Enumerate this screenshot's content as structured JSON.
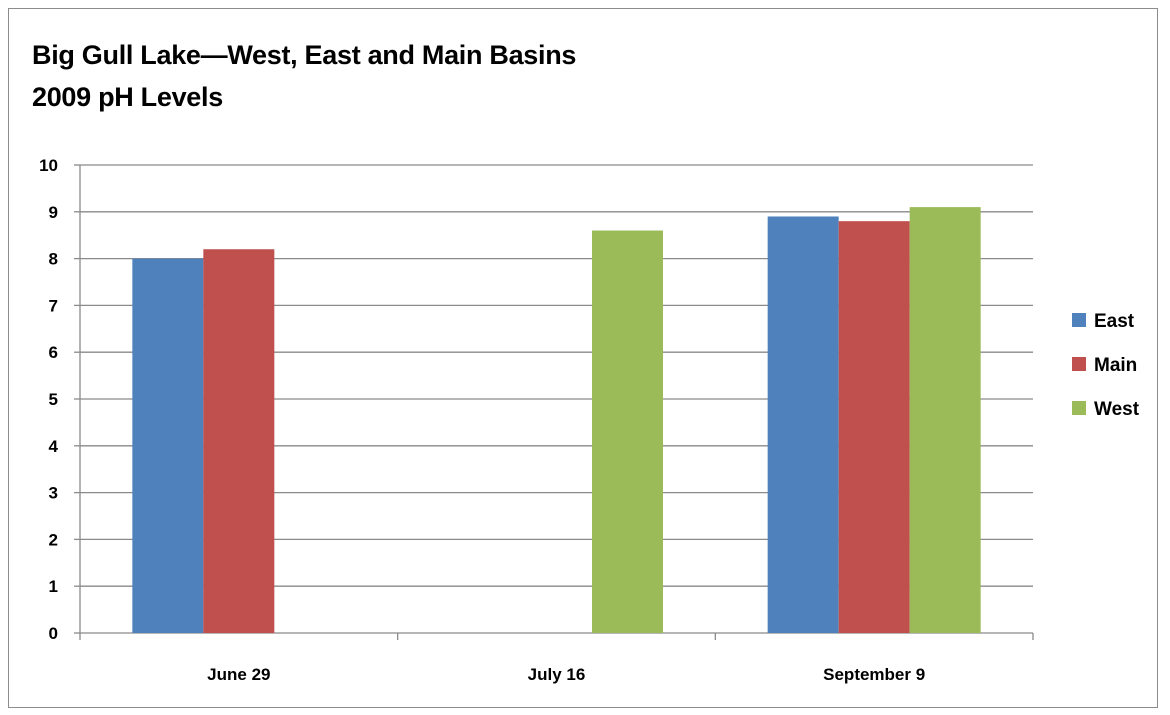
{
  "chart_data": {
    "type": "bar",
    "title": "Big Gull Lake—West, East and Main Basins",
    "subtitle": "2009 pH Levels",
    "categories": [
      "June 29",
      "July 16",
      "September 9"
    ],
    "series": [
      {
        "name": "East",
        "color": "#4f81bd",
        "values": [
          8.0,
          null,
          8.9
        ]
      },
      {
        "name": "Main",
        "color": "#c0504d",
        "values": [
          8.2,
          null,
          8.8
        ]
      },
      {
        "name": "West",
        "color": "#9bbb59",
        "values": [
          null,
          8.6,
          9.1
        ]
      }
    ],
    "ylim": [
      0,
      10
    ],
    "yticks": [
      "0",
      "1",
      "2",
      "3",
      "4",
      "5",
      "6",
      "7",
      "8",
      "9",
      "10"
    ],
    "grid": true,
    "legend_position": "right"
  }
}
